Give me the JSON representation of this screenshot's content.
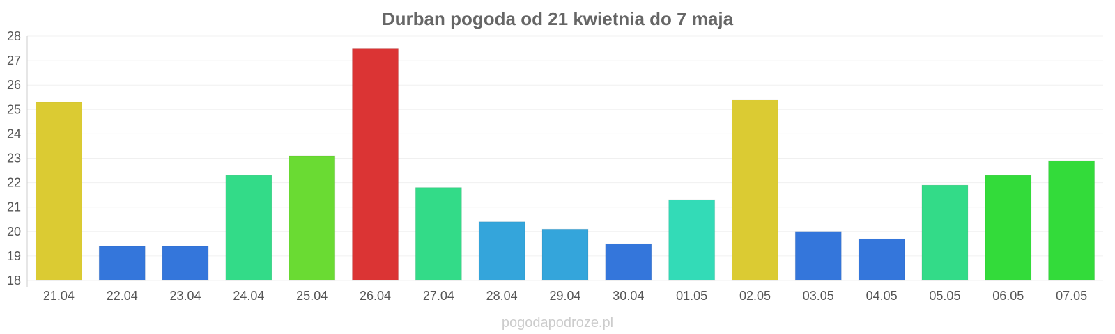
{
  "chart_data": {
    "type": "bar",
    "title": "Durban pogoda od 21 kwietnia do 7 maja",
    "categories": [
      "21.04",
      "22.04",
      "23.04",
      "24.04",
      "25.04",
      "26.04",
      "27.04",
      "28.04",
      "29.04",
      "30.04",
      "01.05",
      "02.05",
      "03.05",
      "04.05",
      "05.05",
      "06.05",
      "07.05"
    ],
    "values": [
      25.3,
      19.4,
      19.4,
      22.3,
      23.1,
      27.5,
      21.8,
      20.4,
      20.1,
      19.5,
      21.3,
      25.4,
      20.0,
      19.7,
      21.9,
      22.3,
      22.9
    ],
    "colors": [
      "#dbcb33",
      "#3476db",
      "#3476db",
      "#33db88",
      "#6adb33",
      "#db3434",
      "#33db88",
      "#34a5db",
      "#34a5db",
      "#3476db",
      "#33dbb7",
      "#dbcb33",
      "#3476db",
      "#3476db",
      "#33db88",
      "#33db3a",
      "#33db3a"
    ],
    "ylim": [
      18,
      28
    ],
    "yticks": [
      "18",
      "19",
      "20",
      "21",
      "22",
      "23",
      "24",
      "25",
      "26",
      "27",
      "28"
    ],
    "grid": true,
    "legend": "none"
  },
  "watermark": "pogodapodroze.pl"
}
